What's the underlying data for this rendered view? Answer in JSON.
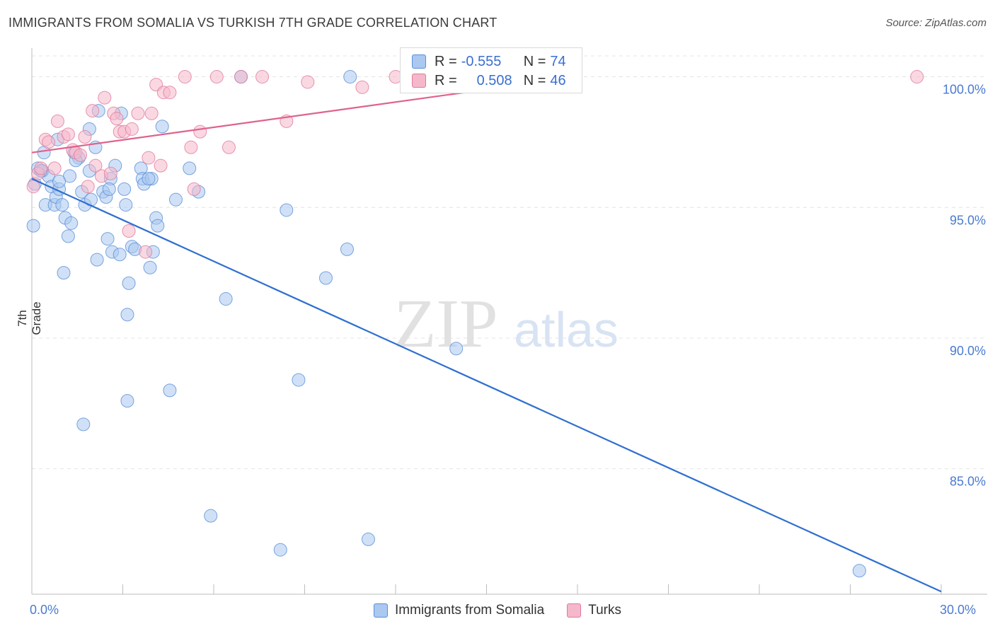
{
  "title": "IMMIGRANTS FROM SOMALIA VS TURKISH 7TH GRADE CORRELATION CHART",
  "source": "Source: ZipAtlas.com",
  "watermark": {
    "zip": "ZIP",
    "atlas": "atlas"
  },
  "legend_top": {
    "rows": [
      {
        "r_key": "R = ",
        "r_val": "-0.555",
        "n_key": "N = ",
        "n_val": "74",
        "color": "#aac8f0",
        "stroke": "#5b8fd6"
      },
      {
        "r_key": "R = ",
        "r_val": "0.508",
        "n_key": "N = ",
        "n_val": "46",
        "color": "#f5b8cb",
        "stroke": "#e07a9b"
      }
    ]
  },
  "bottom_legend": [
    {
      "label": "Immigrants from Somalia",
      "color": "#aac8f0",
      "stroke": "#5b8fd6"
    },
    {
      "label": "Turks",
      "color": "#f5b8cb",
      "stroke": "#e07a9b"
    }
  ],
  "chart_data": {
    "type": "scatter",
    "title": "IMMIGRANTS FROM SOMALIA VS TURKISH 7TH GRADE CORRELATION CHART",
    "xlabel": "",
    "ylabel": "7th Grade",
    "xlim": [
      0,
      30
    ],
    "ylim": [
      80.2,
      100.8
    ],
    "x_tick_labels": [
      "0.0%",
      "30.0%"
    ],
    "y_ticks": [
      85,
      90,
      95,
      100
    ],
    "y_tick_labels": [
      "85.0%",
      "90.0%",
      "95.0%",
      "100.0%"
    ],
    "grid": true,
    "legend_position": "top-center",
    "series": [
      {
        "name": "Immigrants from Somalia",
        "color": "#5b8fd6",
        "fill": "#aac8f0",
        "trend": {
          "x": [
            0,
            30
          ],
          "y": [
            96.1,
            80.3
          ],
          "color": "#2f6fd0"
        },
        "points": [
          [
            0.05,
            94.3
          ],
          [
            0.1,
            95.9
          ],
          [
            0.2,
            96.5
          ],
          [
            0.35,
            96.4
          ],
          [
            0.4,
            97.1
          ],
          [
            0.55,
            96.2
          ],
          [
            0.45,
            95.1
          ],
          [
            0.65,
            95.8
          ],
          [
            0.75,
            95.1
          ],
          [
            0.8,
            95.4
          ],
          [
            0.85,
            97.6
          ],
          [
            0.9,
            95.7
          ],
          [
            1.0,
            95.1
          ],
          [
            1.1,
            94.6
          ],
          [
            1.2,
            93.9
          ],
          [
            1.05,
            92.5
          ],
          [
            1.25,
            96.2
          ],
          [
            1.3,
            94.4
          ],
          [
            1.4,
            97.1
          ],
          [
            1.55,
            96.9
          ],
          [
            1.65,
            95.6
          ],
          [
            1.75,
            95.1
          ],
          [
            1.9,
            96.4
          ],
          [
            1.95,
            95.3
          ],
          [
            1.9,
            98.0
          ],
          [
            2.1,
            97.3
          ],
          [
            2.15,
            93.0
          ],
          [
            2.2,
            98.7
          ],
          [
            2.35,
            95.6
          ],
          [
            2.45,
            95.4
          ],
          [
            2.5,
            93.8
          ],
          [
            2.6,
            96.1
          ],
          [
            2.55,
            95.7
          ],
          [
            2.65,
            93.3
          ],
          [
            2.75,
            96.6
          ],
          [
            2.9,
            93.2
          ],
          [
            2.95,
            98.6
          ],
          [
            3.05,
            95.7
          ],
          [
            3.1,
            95.1
          ],
          [
            3.15,
            90.9
          ],
          [
            3.2,
            92.1
          ],
          [
            3.3,
            93.5
          ],
          [
            3.4,
            93.4
          ],
          [
            3.6,
            96.5
          ],
          [
            3.65,
            96.1
          ],
          [
            3.7,
            95.9
          ],
          [
            3.9,
            92.7
          ],
          [
            3.95,
            96.1
          ],
          [
            4.0,
            93.3
          ],
          [
            4.1,
            94.6
          ],
          [
            4.15,
            94.3
          ],
          [
            4.3,
            98.1
          ],
          [
            4.55,
            88.0
          ],
          [
            4.75,
            95.3
          ],
          [
            5.2,
            96.5
          ],
          [
            5.5,
            95.6
          ],
          [
            5.9,
            83.2
          ],
          [
            6.4,
            91.5
          ],
          [
            6.9,
            100.0
          ],
          [
            8.2,
            81.9
          ],
          [
            8.4,
            94.9
          ],
          [
            8.8,
            88.4
          ],
          [
            9.7,
            92.3
          ],
          [
            10.4,
            93.4
          ],
          [
            10.5,
            100.0
          ],
          [
            11.1,
            82.3
          ],
          [
            14.0,
            89.6
          ],
          [
            27.3,
            81.1
          ],
          [
            1.7,
            86.7
          ],
          [
            3.15,
            87.6
          ],
          [
            0.3,
            96.4
          ],
          [
            0.9,
            96.0
          ],
          [
            1.45,
            96.8
          ],
          [
            3.85,
            96.1
          ]
        ]
      },
      {
        "name": "Turks",
        "color": "#e07a9b",
        "fill": "#f5b8cb",
        "trend": {
          "x": [
            0,
            18
          ],
          "y": [
            97.1,
            100.0
          ],
          "color": "#e0628c"
        },
        "points": [
          [
            0.05,
            95.8
          ],
          [
            0.2,
            96.3
          ],
          [
            0.3,
            96.5
          ],
          [
            0.45,
            97.6
          ],
          [
            0.55,
            97.5
          ],
          [
            0.75,
            96.5
          ],
          [
            0.85,
            98.3
          ],
          [
            1.05,
            97.7
          ],
          [
            1.2,
            97.8
          ],
          [
            1.35,
            97.2
          ],
          [
            1.45,
            97.1
          ],
          [
            1.6,
            97.0
          ],
          [
            1.75,
            97.7
          ],
          [
            1.85,
            95.8
          ],
          [
            2.0,
            98.7
          ],
          [
            2.1,
            96.6
          ],
          [
            2.3,
            96.2
          ],
          [
            2.4,
            99.2
          ],
          [
            2.6,
            96.3
          ],
          [
            2.7,
            98.6
          ],
          [
            2.8,
            98.4
          ],
          [
            2.9,
            97.9
          ],
          [
            3.05,
            97.9
          ],
          [
            3.2,
            94.1
          ],
          [
            3.3,
            98.0
          ],
          [
            3.5,
            98.6
          ],
          [
            3.75,
            93.3
          ],
          [
            3.85,
            96.9
          ],
          [
            3.95,
            98.6
          ],
          [
            4.1,
            99.7
          ],
          [
            4.25,
            96.6
          ],
          [
            4.35,
            99.4
          ],
          [
            4.55,
            99.4
          ],
          [
            5.05,
            100.0
          ],
          [
            5.25,
            97.3
          ],
          [
            5.35,
            95.7
          ],
          [
            5.55,
            97.9
          ],
          [
            6.1,
            100.0
          ],
          [
            6.5,
            97.3
          ],
          [
            6.9,
            100.0
          ],
          [
            7.6,
            100.0
          ],
          [
            8.4,
            98.3
          ],
          [
            9.1,
            99.8
          ],
          [
            10.9,
            99.6
          ],
          [
            12.0,
            100.0
          ],
          [
            29.2,
            100.0
          ]
        ]
      }
    ]
  }
}
